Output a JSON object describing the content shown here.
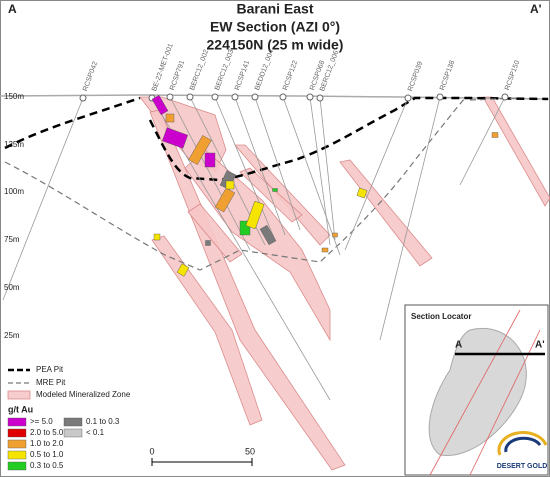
{
  "header": {
    "corner_left": "A",
    "corner_right": "A'",
    "title": "Barani East",
    "subtitle": "EW Section (AZI 0°)",
    "section": "224150N (25 m wide)"
  },
  "elevation_labels": [
    "150m",
    "125m",
    "100m",
    "75m",
    "50m",
    "25m"
  ],
  "drill_holes": [
    "RCSP042",
    "BE-22-MET-001",
    "RCSP791",
    "BERC12_002",
    "BERC12_003",
    "RCSP141",
    "BEDD12_004",
    "RCSP122",
    "RCSP068",
    "BERC12_006",
    "RCSP039",
    "RCSP138",
    "RCSP150"
  ],
  "legend": {
    "pea_pit": "PEA Pit",
    "mre_pit": "MRE Pit",
    "zone": "Modeled Mineralized Zone",
    "grade_title": "g/t Au",
    "grades": [
      {
        "label": ">= 5.0",
        "color": "#cc00cc"
      },
      {
        "label": "2.0 to 5.0",
        "color": "#e00000"
      },
      {
        "label": "1.0 to 2.0",
        "color": "#f0a030"
      },
      {
        "label": "0.5 to 1.0",
        "color": "#f5e400"
      },
      {
        "label": "0.3 to 0.5",
        "color": "#22cc22"
      },
      {
        "label": "0.1 to 0.3",
        "color": "#7a7a7a"
      },
      {
        "label": "< 0.1",
        "color": "#c8c8c8"
      }
    ]
  },
  "scale_bar": {
    "start": "0",
    "end": "50"
  },
  "section_locator": {
    "title": "Section Locator",
    "left": "A",
    "right": "A'"
  },
  "logo": "DESERT GOLD"
}
